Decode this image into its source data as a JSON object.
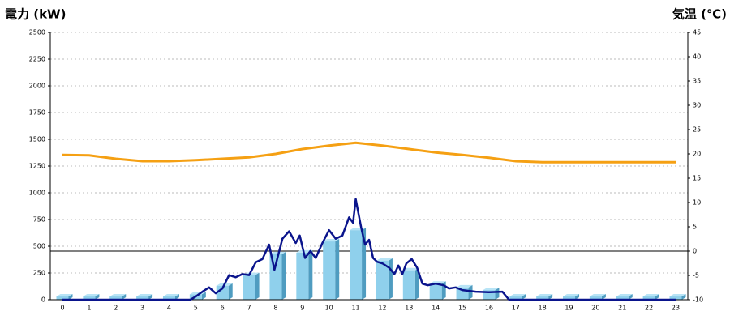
{
  "chart_data": {
    "type": "combo",
    "y_label": "電力 (kW)",
    "y2_label": "気温 (℃)",
    "y_label_color": "#1a64b4",
    "y2_label_color": "#f07c1e",
    "categories": [
      "0",
      "1",
      "2",
      "3",
      "4",
      "5",
      "6",
      "7",
      "8",
      "9",
      "10",
      "11",
      "12",
      "13",
      "14",
      "15",
      "16",
      "17",
      "18",
      "19",
      "20",
      "21",
      "22",
      "23"
    ],
    "bars": {
      "color": "#8fd0ec",
      "side_color": "#4f9cc0",
      "values": [
        30,
        30,
        30,
        30,
        30,
        50,
        130,
        230,
        425,
        440,
        545,
        650,
        365,
        275,
        150,
        115,
        90,
        30,
        30,
        30,
        30,
        30,
        30,
        30
      ]
    },
    "power_line": {
      "color": "#0a148c",
      "x": [
        0,
        4.8,
        5,
        5.25,
        5.5,
        5.75,
        6,
        6.25,
        6.5,
        6.75,
        7,
        7.25,
        7.5,
        7.75,
        7.95,
        8.25,
        8.5,
        8.75,
        8.9,
        9.1,
        9.3,
        9.5,
        9.75,
        10,
        10.25,
        10.5,
        10.75,
        10.9,
        11,
        11.2,
        11.35,
        11.5,
        11.65,
        11.8,
        12,
        12.25,
        12.45,
        12.6,
        12.75,
        12.9,
        13.1,
        13.3,
        13.5,
        13.7,
        14,
        14.3,
        14.5,
        14.75,
        15,
        15.5,
        16,
        16.5,
        16.75,
        23
      ],
      "values": [
        0,
        0,
        30,
        75,
        115,
        60,
        105,
        230,
        210,
        240,
        230,
        350,
        380,
        515,
        280,
        570,
        640,
        530,
        600,
        390,
        455,
        390,
        530,
        650,
        570,
        600,
        770,
        720,
        940,
        680,
        515,
        560,
        390,
        355,
        340,
        300,
        240,
        320,
        240,
        340,
        380,
        300,
        150,
        135,
        150,
        135,
        105,
        115,
        90,
        75,
        70,
        75,
        0,
        0
      ]
    },
    "temperature": {
      "color": "#f5a013",
      "axis": "y2",
      "values": [
        19.8,
        19.7,
        19,
        18.5,
        18.5,
        18.7,
        19,
        19.3,
        20,
        21,
        21.7,
        22.3,
        21.7,
        21,
        20.3,
        19.8,
        19.2,
        18.5,
        18.3,
        18.3,
        18.3,
        18.3,
        18.3,
        18.3
      ]
    },
    "ylim": [
      0,
      2500
    ],
    "yticks": [
      0,
      250,
      500,
      750,
      1000,
      1250,
      1500,
      1750,
      2000,
      2250,
      2500
    ],
    "y2lim": [
      -10,
      45
    ],
    "y2ticks": [
      -10,
      -5,
      0,
      5,
      10,
      15,
      20,
      25,
      30,
      35,
      40,
      45
    ],
    "grid": true
  }
}
